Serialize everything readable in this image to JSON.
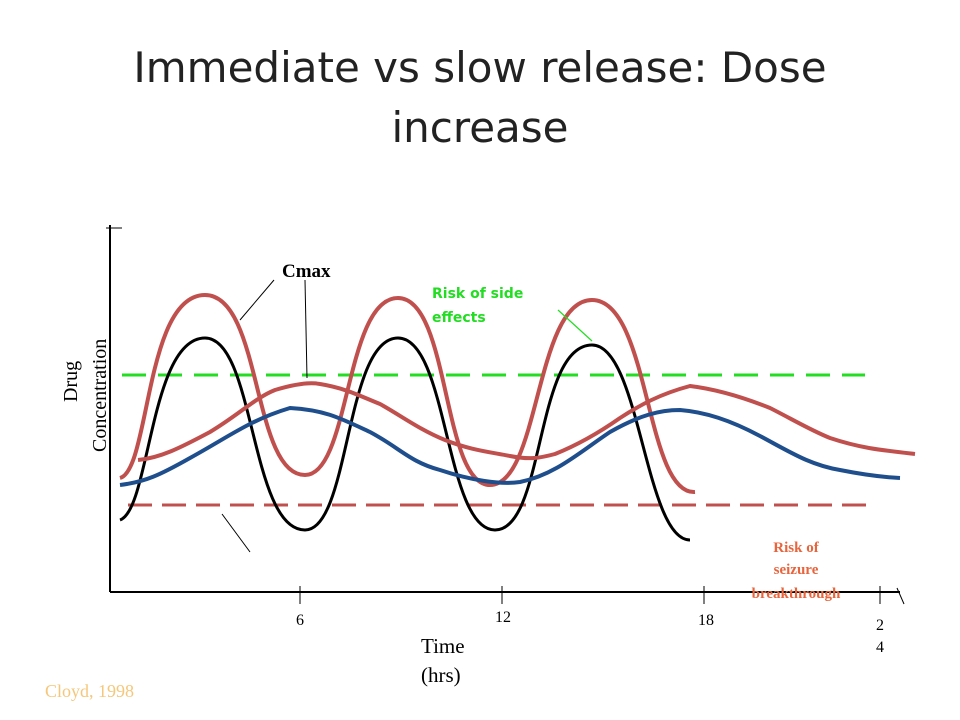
{
  "slide": {
    "title": "Immediate vs slow release: Dose increase",
    "citation": "Cloyd, 1998"
  },
  "figure": {
    "y_axis_label_line1": "Drug",
    "y_axis_label_line2": "Concentration",
    "x_axis_label_line1": "Time",
    "x_axis_label_line2": "(hrs)",
    "x_ticks": [
      "6",
      "12",
      "18"
    ],
    "x_tick_last_line1": "2",
    "x_tick_last_line2": "4",
    "annotations": {
      "cmax": "Cmax",
      "side_effects_line1": "Risk of  side",
      "side_effects_line2": "effects",
      "seizure_line1": "Risk of",
      "seizure_line2": "seizure",
      "seizure_line3": "breakthrough"
    },
    "colors": {
      "immediate_release_high": "#c0504d",
      "immediate_release_low": "#000000",
      "slow_release_high": "#c0504d",
      "slow_release_low": "#1f4e8c",
      "side_effect_threshold": "#22dd22",
      "seizure_threshold": "#c0504d",
      "seizure_text": "#e8643c",
      "citation": "#f5c77a"
    }
  }
}
